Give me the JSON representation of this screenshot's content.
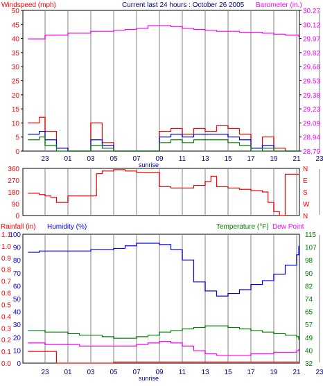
{
  "colors": {
    "wind": "#ff0000",
    "wind_avg": "#0000ff",
    "wind_low": "#008000",
    "baro": "#ff00ff",
    "dir": "#ff0000",
    "humidity": "#0000ff",
    "temp": "#008000",
    "dew": "#ff00ff",
    "rain": "#ff0000",
    "grid": "#c0c0c0",
    "frame": "#000000"
  },
  "x_ticks": [
    "23",
    "01",
    "03",
    "05",
    "07",
    "09",
    "11",
    "13",
    "15",
    "17",
    "19",
    "21",
    "23"
  ],
  "chart_data": [
    {
      "type": "line",
      "title": "Current last 24 hours : October 26 2005",
      "ylabel": "Windspeed (mph)",
      "y2label": "Barometer (in.)",
      "ylim": [
        0,
        50
      ],
      "y2lim": [
        28.79,
        30.27
      ],
      "yticks": [
        "0",
        "5",
        "10",
        "15",
        "20",
        "25",
        "30",
        "35",
        "40",
        "45",
        "50"
      ],
      "y2ticks": [
        "28.79",
        "28.94",
        "29.09",
        "29.23",
        "29.38",
        "29.53",
        "29.68",
        "29.82",
        "29.97",
        "30.12",
        "30.27"
      ],
      "xlabel": "sunrise",
      "x": [
        -1.5,
        -0.5,
        0,
        1,
        2,
        3,
        4,
        5,
        6,
        7,
        8,
        9,
        10,
        11,
        12,
        13,
        14,
        15,
        16,
        17,
        18,
        19,
        20,
        21,
        22,
        23,
        24
      ],
      "series": [
        {
          "values": [
            29.97,
            29.97,
            30.01,
            30.01,
            30.03,
            30.03,
            30.05,
            30.05,
            30.06,
            30.07,
            30.08,
            30.11,
            30.11,
            30.1,
            30.08,
            30.07,
            30.06,
            30.05,
            30.05,
            30.04,
            30.04,
            30.03,
            30.02,
            30.01,
            30.01,
            30.0,
            29.99
          ]
        },
        {
          "values": [
            10,
            12,
            7,
            1,
            0,
            0,
            10,
            3,
            0,
            0,
            0,
            0,
            7,
            8,
            6,
            8,
            7,
            9,
            8,
            6,
            1,
            5,
            1,
            0,
            0,
            0,
            0
          ]
        },
        {
          "values": [
            6,
            7,
            4,
            1,
            0,
            0,
            4,
            2,
            0,
            0,
            0,
            0,
            5,
            6,
            5,
            6,
            6,
            6,
            5,
            4,
            1,
            2,
            0,
            0,
            0,
            0,
            0
          ]
        },
        {
          "values": [
            4,
            5,
            2,
            0,
            0,
            0,
            2,
            1,
            0,
            0,
            0,
            0,
            3,
            4,
            3,
            4,
            4,
            4,
            3,
            2,
            0,
            1,
            0,
            0,
            0,
            0,
            0
          ]
        }
      ]
    },
    {
      "type": "line",
      "ylim": [
        0,
        360
      ],
      "yticks": [
        "0",
        "90",
        "180",
        "270",
        "360"
      ],
      "y2ticks": [
        "N",
        "E",
        "S",
        "W",
        "N"
      ],
      "x": [
        -1.5,
        -0.5,
        0,
        0.5,
        1,
        2,
        3,
        4,
        4.5,
        5,
        6,
        7,
        8,
        9,
        9.5,
        10,
        11,
        12,
        13,
        14,
        14.5,
        15,
        16,
        17,
        18,
        19,
        19.5,
        20,
        20.5,
        21,
        22,
        23,
        24
      ],
      "series": [
        {
          "values": [
            170,
            160,
            150,
            140,
            100,
            150,
            150,
            150,
            320,
            340,
            350,
            340,
            330,
            330,
            330,
            220,
            210,
            210,
            230,
            260,
            300,
            220,
            210,
            200,
            190,
            180,
            100,
            30,
            0,
            315,
            315,
            315,
            315
          ]
        }
      ]
    },
    {
      "type": "line",
      "ylabel": "Rainfall (in)",
      "y2label": "Humidity (%)",
      "y3label": "Temperature (°F)",
      "y4label": "Dew Point",
      "xlabel": "sunrise",
      "ylim": [
        0,
        1.1
      ],
      "y2lim": [
        0,
        100
      ],
      "y3lim": [
        32,
        115
      ],
      "yticks_rain": [
        "0.0",
        "0.1",
        "0.2",
        "0.3",
        "0.4",
        "0.5",
        "0.6",
        "0.7",
        "0.8",
        "0.9",
        "1.0",
        "1.1"
      ],
      "yticks_hum": [
        "0",
        "10",
        "20",
        "30",
        "40",
        "50",
        "60",
        "70",
        "80",
        "90",
        "100"
      ],
      "yticks_temp": [
        "32",
        "40",
        "49",
        "57",
        "65",
        "74",
        "82",
        "90",
        "98",
        "107",
        "115"
      ],
      "x": [
        -1.5,
        -0.5,
        0,
        1,
        2,
        3,
        4,
        5,
        6,
        7,
        8,
        9,
        10,
        11,
        12,
        13,
        14,
        15,
        16,
        17,
        18,
        19,
        20,
        21,
        22,
        23,
        24
      ],
      "series": [
        {
          "values": [
            86,
            87,
            87,
            87,
            87,
            87,
            88,
            88,
            89,
            91,
            93,
            93,
            92,
            88,
            80,
            63,
            56,
            52,
            54,
            57,
            61,
            64,
            69,
            76,
            84,
            88,
            91
          ]
        },
        {
          "values": [
            53,
            53,
            52,
            52,
            51,
            50,
            50,
            49,
            48,
            48,
            49,
            50,
            52,
            53,
            54,
            55,
            56,
            56,
            55,
            54,
            53,
            52,
            51,
            50,
            49,
            48,
            47
          ]
        },
        {
          "values": [
            45,
            45,
            44,
            44,
            44,
            43,
            43,
            43,
            43,
            43,
            44,
            45,
            46,
            45,
            43,
            40,
            38,
            37,
            37,
            37,
            38,
            38,
            39,
            39,
            40,
            40,
            41
          ]
        },
        {
          "values": [
            0.1,
            0.1,
            0.1,
            0.0,
            0.0,
            0.0,
            0.0,
            0.0,
            0.01,
            0.01,
            0.01,
            0.01,
            0.01,
            0.01,
            0.01,
            0.01,
            0.01,
            0.01,
            0.01,
            0.01,
            0.01,
            0.01,
            0.01,
            0.01,
            0.01,
            0.01,
            0.01
          ]
        }
      ]
    }
  ]
}
